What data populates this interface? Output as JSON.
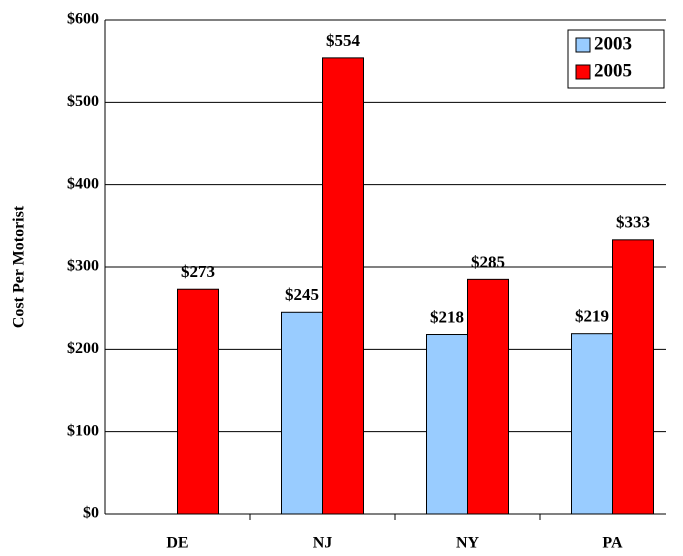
{
  "chart_data": {
    "type": "bar",
    "y_label": "Cost Per Motorist",
    "categories": [
      "DE",
      "NJ",
      "NY",
      "PA"
    ],
    "series": [
      {
        "name": "2003",
        "color": "#99ccff",
        "values": [
          null,
          245,
          218,
          219
        ],
        "value_labels": [
          null,
          "$245",
          "$218",
          "$219"
        ]
      },
      {
        "name": "2005",
        "color": "#ff0000",
        "values": [
          273,
          554,
          285,
          333
        ],
        "value_labels": [
          "$273",
          "$554",
          "$285",
          "$333"
        ]
      }
    ],
    "ylim": [
      0,
      600
    ],
    "yticks": [
      {
        "value": 0,
        "label": "$0"
      },
      {
        "value": 100,
        "label": "$100"
      },
      {
        "value": 200,
        "label": "$200"
      },
      {
        "value": 300,
        "label": "$300"
      },
      {
        "value": 400,
        "label": "$400"
      },
      {
        "value": 500,
        "label": "$500"
      },
      {
        "value": 600,
        "label": "$600"
      }
    ],
    "grid": true,
    "legend": "top-right"
  }
}
